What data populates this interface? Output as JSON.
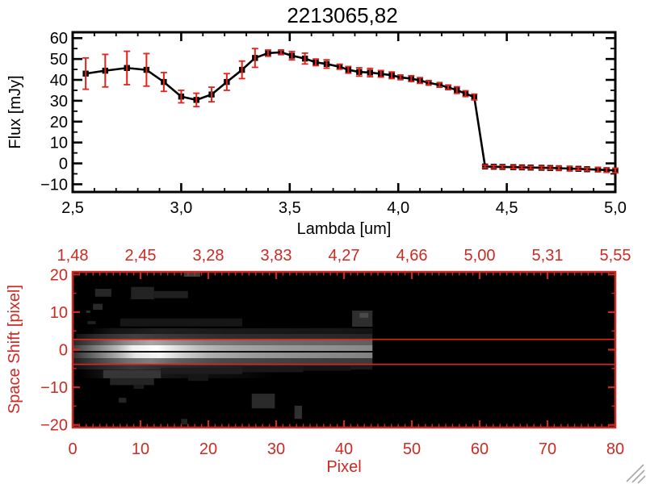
{
  "window": {
    "background": "#ffffff"
  },
  "colors": {
    "axis_black": "#000000",
    "axis_red": "#cd2a24",
    "bright_red": "#e3231a",
    "panel_bg": "#000000",
    "marker": "#000000",
    "grip_gray": "#a8a8a8"
  },
  "chart_data": [
    {
      "type": "line",
      "title": "2213065,82",
      "xlabel": "Lambda [um]",
      "ylabel": "Flux [mJy]",
      "xlim": [
        2.5,
        5.0
      ],
      "ylim": [
        -13.7,
        62.8
      ],
      "grid": false,
      "xticks": {
        "values": [
          2.5,
          3.0,
          3.5,
          4.0,
          4.5,
          5.0
        ],
        "labels": [
          "2,5",
          "3,0",
          "3,5",
          "4,0",
          "4,5",
          "5,0"
        ],
        "minor_step": 0.1
      },
      "yticks": {
        "values": [
          -10,
          0,
          10,
          20,
          30,
          40,
          50,
          60
        ],
        "labels": [
          "−10",
          "0",
          "10",
          "20",
          "30",
          "40",
          "50",
          "60"
        ],
        "minor_step": 5
      },
      "series": [
        {
          "name": "spectrum",
          "color": "#000000",
          "marker": "filled-square",
          "error_color": "#e3231a",
          "x": [
            2.56,
            2.65,
            2.75,
            2.84,
            2.92,
            3.0,
            3.07,
            3.14,
            3.21,
            3.28,
            3.34,
            3.4,
            3.46,
            3.51,
            3.57,
            3.62,
            3.67,
            3.73,
            3.77,
            3.82,
            3.87,
            3.92,
            3.97,
            4.01,
            4.06,
            4.1,
            4.14,
            4.19,
            4.23,
            4.27,
            4.31,
            4.35,
            4.4,
            4.44,
            4.48,
            4.53,
            4.57,
            4.61,
            4.66,
            4.7,
            4.74,
            4.79,
            4.83,
            4.87,
            4.92,
            4.96,
            5.0
          ],
          "y": [
            43.0,
            44.4,
            45.7,
            44.8,
            39.0,
            32.0,
            30.4,
            33.0,
            39.0,
            44.8,
            50.5,
            52.8,
            53.2,
            51.6,
            50.2,
            48.4,
            47.6,
            46.3,
            44.8,
            43.8,
            43.5,
            42.9,
            42.2,
            41.2,
            40.6,
            39.7,
            38.6,
            37.6,
            36.4,
            35.1,
            33.4,
            31.8,
            -1.5,
            -1.6,
            -1.7,
            -1.8,
            -1.9,
            -2.0,
            -2.1,
            -2.2,
            -2.3,
            -2.5,
            -2.6,
            -2.8,
            -3.0,
            -3.2,
            -3.4
          ],
          "yerr": [
            7.5,
            7.8,
            8.0,
            7.8,
            4.5,
            3.0,
            3.2,
            3.5,
            4.0,
            4.2,
            4.5,
            1.5,
            1.0,
            2.0,
            2.6,
            1.6,
            2.0,
            1.2,
            1.6,
            2.0,
            2.0,
            1.6,
            1.6,
            1.0,
            1.4,
            1.4,
            1.0,
            1.0,
            1.0,
            1.6,
            1.4,
            1.4,
            0.7,
            0.7,
            0.7,
            0.7,
            0.7,
            0.7,
            0.7,
            0.7,
            0.9,
            1.1,
            0.7,
            0.7,
            1.1,
            1.1,
            1.1
          ]
        }
      ]
    },
    {
      "type": "heatmap",
      "xlabel": "Pixel",
      "ylabel": "Space Shift [pixel]",
      "axis_color": "#cd2a24",
      "background": "#000000",
      "xlim": [
        0,
        80
      ],
      "ylim": [
        -20.7,
        20.7
      ],
      "xticks": {
        "values": [
          0,
          10,
          20,
          30,
          40,
          50,
          60,
          70,
          80
        ],
        "labels": [
          "0",
          "10",
          "20",
          "30",
          "40",
          "50",
          "60",
          "70",
          "80"
        ],
        "minor_step": 1
      },
      "yticks": {
        "values": [
          -20,
          -10,
          0,
          10,
          20
        ],
        "labels": [
          "−20",
          "−10",
          "0",
          "10",
          "20"
        ],
        "minor_step": 5
      },
      "top_axis_labels": [
        "1,48",
        "2,45",
        "3,28",
        "3,83",
        "4,27",
        "4,66",
        "5,00",
        "5,31",
        "5,55"
      ],
      "aperture_lines": [
        2.75,
        -3.9
      ],
      "center_dark_line": {
        "shift": -0.55,
        "x0": 0,
        "x1": 44.2
      },
      "trace_bands": [
        {
          "s_top": 5.7,
          "s_bot": 4.2,
          "x0": 2.0,
          "x1": 44.2,
          "stops": [
            [
              0,
              "#000000"
            ],
            [
              0.1,
              "#161616"
            ],
            [
              0.25,
              "#202020"
            ],
            [
              0.5,
              "#1a1a1a"
            ],
            [
              1,
              "#141414"
            ]
          ]
        },
        {
          "s_top": 4.2,
          "s_bot": 2.7,
          "x0": 0.5,
          "x1": 44.2,
          "stops": [
            [
              0,
              "#141414"
            ],
            [
              0.08,
              "#2e2e2e"
            ],
            [
              0.2,
              "#424242"
            ],
            [
              0.32,
              "#383838"
            ],
            [
              0.5,
              "#2e2e2e"
            ],
            [
              0.75,
              "#2a2a2a"
            ],
            [
              1,
              "#262626"
            ]
          ]
        },
        {
          "s_top": 2.7,
          "s_bot": 1.2,
          "x0": 0,
          "x1": 44.2,
          "stops": [
            [
              0,
              "#262626"
            ],
            [
              0.08,
              "#4e4e4e"
            ],
            [
              0.18,
              "#8a8a8a"
            ],
            [
              0.26,
              "#a8a8a8"
            ],
            [
              0.34,
              "#909090"
            ],
            [
              0.45,
              "#7a7a7a"
            ],
            [
              0.6,
              "#6e6e6e"
            ],
            [
              0.8,
              "#666666"
            ],
            [
              1,
              "#606060"
            ]
          ]
        },
        {
          "s_top": 1.2,
          "s_bot": -0.5,
          "x0": 0,
          "x1": 44.2,
          "stops": [
            [
              0,
              "#3c3c3c"
            ],
            [
              0.07,
              "#787878"
            ],
            [
              0.15,
              "#b8b8b8"
            ],
            [
              0.2,
              "#f0f0f0"
            ],
            [
              0.28,
              "#ffffff"
            ],
            [
              0.34,
              "#e0e0e0"
            ],
            [
              0.42,
              "#bdbdbd"
            ],
            [
              0.52,
              "#a8a8a8"
            ],
            [
              0.7,
              "#989898"
            ],
            [
              0.9,
              "#8e8e8e"
            ],
            [
              1,
              "#888888"
            ]
          ]
        },
        {
          "s_top": -0.75,
          "s_bot": -2.3,
          "x0": 0,
          "x1": 44.2,
          "stops": [
            [
              0,
              "#303030"
            ],
            [
              0.07,
              "#6a6a6a"
            ],
            [
              0.15,
              "#aaaaaa"
            ],
            [
              0.21,
              "#e6e6e6"
            ],
            [
              0.29,
              "#f6f6f6"
            ],
            [
              0.36,
              "#d2d2d2"
            ],
            [
              0.45,
              "#b0b0b0"
            ],
            [
              0.6,
              "#9a9a9a"
            ],
            [
              0.8,
              "#8c8c8c"
            ],
            [
              1,
              "#828282"
            ]
          ]
        },
        {
          "s_top": -2.3,
          "s_bot": -3.8,
          "x0": 0,
          "x1": 44.2,
          "stops": [
            [
              0,
              "#1e1e1e"
            ],
            [
              0.08,
              "#424242"
            ],
            [
              0.18,
              "#6e6e6e"
            ],
            [
              0.26,
              "#7e7e7e"
            ],
            [
              0.36,
              "#5c5c5c"
            ],
            [
              0.5,
              "#484848"
            ],
            [
              0.7,
              "#404040"
            ],
            [
              1,
              "#3a3a3a"
            ]
          ]
        },
        {
          "s_top": -3.8,
          "s_bot": -5.3,
          "x0": 0,
          "x1": 44.2,
          "stops": [
            [
              0,
              "#101010"
            ],
            [
              0.1,
              "#282828"
            ],
            [
              0.2,
              "#383838"
            ],
            [
              0.32,
              "#2a2a2a"
            ],
            [
              0.55,
              "#1f1f1f"
            ],
            [
              1,
              "#1a1a1a"
            ]
          ]
        },
        {
          "s_top": -5.3,
          "s_bot": -7.6,
          "x0": 1.0,
          "x1": 30.0,
          "stops": [
            [
              0,
              "#000000"
            ],
            [
              0.15,
              "#161616"
            ],
            [
              0.3,
              "#1e1e1e"
            ],
            [
              0.5,
              "#121212"
            ],
            [
              0.8,
              "#0a0a0a"
            ],
            [
              1,
              "#000000"
            ]
          ]
        }
      ],
      "noise_blocks": [
        {
          "x0": 3.3,
          "s_top": 16.2,
          "x1": 5.7,
          "s_bot": 14.1,
          "color": "#262626"
        },
        {
          "x0": 8.6,
          "s_top": 16.7,
          "x1": 12.0,
          "s_bot": 13.4,
          "color": "#232323"
        },
        {
          "x0": 12.0,
          "s_top": 15.6,
          "x1": 17.0,
          "s_bot": 13.7,
          "color": "#1f1f1f"
        },
        {
          "x0": 16.4,
          "s_top": 20.7,
          "x1": 18.8,
          "s_bot": 19.4,
          "color": "#3f3f3f"
        },
        {
          "x0": 3.0,
          "s_top": 12.2,
          "x1": 4.4,
          "s_bot": 10.6,
          "color": "#2a2a2a"
        },
        {
          "x0": 2.0,
          "s_top": 10.4,
          "x1": 2.6,
          "s_bot": 9.8,
          "color": "#303030"
        },
        {
          "x0": 7.0,
          "s_top": 8.3,
          "x1": 25.0,
          "s_bot": 6.2,
          "color": "#161616"
        },
        {
          "x0": 2.2,
          "s_top": 7.6,
          "x1": 3.4,
          "s_bot": 6.8,
          "color": "#222222"
        },
        {
          "x0": 41.2,
          "s_top": 10.4,
          "x1": 44.2,
          "s_bot": 6.1,
          "color": "#2e2e2e"
        },
        {
          "x0": 42.3,
          "s_top": 9.8,
          "x1": 43.6,
          "s_bot": 8.5,
          "color": "#4a4a4a"
        },
        {
          "x0": 4.5,
          "s_top": -5.4,
          "x1": 13.0,
          "s_bot": -7.6,
          "color": "#363636"
        },
        {
          "x0": 5.5,
          "s_top": -7.6,
          "x1": 12.0,
          "s_bot": -9.4,
          "color": "#242424"
        },
        {
          "x0": 9.0,
          "s_top": -9.4,
          "x1": 10.5,
          "s_bot": -10.4,
          "color": "#1c1c1c"
        },
        {
          "x0": 13.0,
          "s_top": -4.8,
          "x1": 25.0,
          "s_bot": -6.5,
          "color": "#1d1d1d"
        },
        {
          "x0": 25.0,
          "s_top": -4.5,
          "x1": 34.0,
          "s_bot": -6.0,
          "color": "#181818"
        },
        {
          "x0": 34.0,
          "s_top": -4.4,
          "x1": 41.0,
          "s_bot": -5.6,
          "color": "#141414"
        },
        {
          "x0": 17.0,
          "s_top": -6.5,
          "x1": 20.0,
          "s_bot": -8.3,
          "color": "#161616"
        },
        {
          "x0": 6.8,
          "s_top": -12.8,
          "x1": 7.9,
          "s_bot": -14.1,
          "color": "#262626"
        },
        {
          "x0": 26.4,
          "s_top": -11.7,
          "x1": 29.8,
          "s_bot": -15.6,
          "color": "#2a2a2a"
        },
        {
          "x0": 32.7,
          "s_top": -14.9,
          "x1": 33.8,
          "s_bot": -18.4,
          "color": "#303030"
        },
        {
          "x0": 16.0,
          "s_top": -18.4,
          "x1": 16.9,
          "s_bot": -19.9,
          "color": "#242424"
        }
      ]
    }
  ],
  "decorations": {
    "resize_grip_icon": "diagonal-lines"
  }
}
